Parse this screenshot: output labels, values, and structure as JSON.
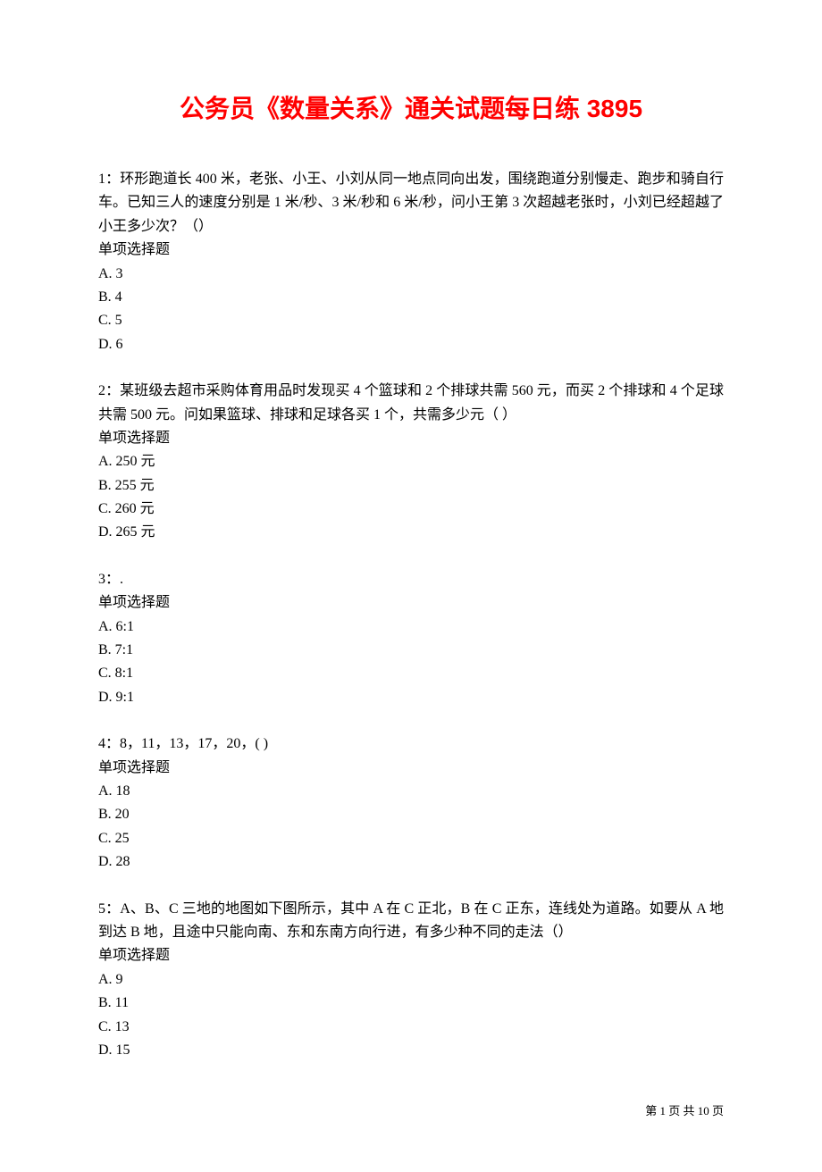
{
  "title": "公务员《数量关系》通关试题每日练 3895",
  "questions": [
    {
      "number": "1：",
      "text": "环形跑道长 400 米，老张、小王、小刘从同一地点同向出发，围绕跑道分别慢走、跑步和骑自行车。已知三人的速度分别是 1 米/秒、3 米/秒和 6 米/秒，问小王第 3 次超越老张时，小刘已经超越了小王多少次？（）",
      "type": "单项选择题",
      "options": [
        {
          "label": "A. 3"
        },
        {
          "label": "B. 4"
        },
        {
          "label": "C. 5"
        },
        {
          "label": "D. 6"
        }
      ]
    },
    {
      "number": "2：",
      "text": "某班级去超市采购体育用品时发现买 4 个篮球和 2 个排球共需 560 元，而买 2 个排球和 4 个足球共需 500 元。问如果篮球、排球和足球各买 1 个，共需多少元（  ）",
      "type": "单项选择题",
      "options": [
        {
          "label": "A. 250 元"
        },
        {
          "label": "B. 255 元"
        },
        {
          "label": "C. 260 元"
        },
        {
          "label": "D. 265 元"
        }
      ]
    },
    {
      "number": "3：",
      "text": ".",
      "type": "单项选择题",
      "options": [
        {
          "label": "A. 6:1"
        },
        {
          "label": "B. 7:1"
        },
        {
          "label": "C. 8:1"
        },
        {
          "label": "D. 9:1"
        }
      ]
    },
    {
      "number": "4：",
      "text": "8，11，13，17，20，(   )",
      "type": "单项选择题",
      "options": [
        {
          "label": "A. 18"
        },
        {
          "label": "B. 20"
        },
        {
          "label": "C. 25"
        },
        {
          "label": "D. 28"
        }
      ]
    },
    {
      "number": "5：",
      "text": "A、B、C 三地的地图如下图所示，其中 A 在 C 正北，B 在 C 正东，连线处为道路。如要从 A 地到达 B 地，且途中只能向南、东和东南方向行进，有多少种不同的走法（）",
      "type": "单项选择题",
      "options": [
        {
          "label": "A. 9"
        },
        {
          "label": "B. 11"
        },
        {
          "label": "C. 13"
        },
        {
          "label": "D. 15"
        }
      ]
    }
  ],
  "footer": {
    "text": "第 1 页 共 10 页"
  }
}
